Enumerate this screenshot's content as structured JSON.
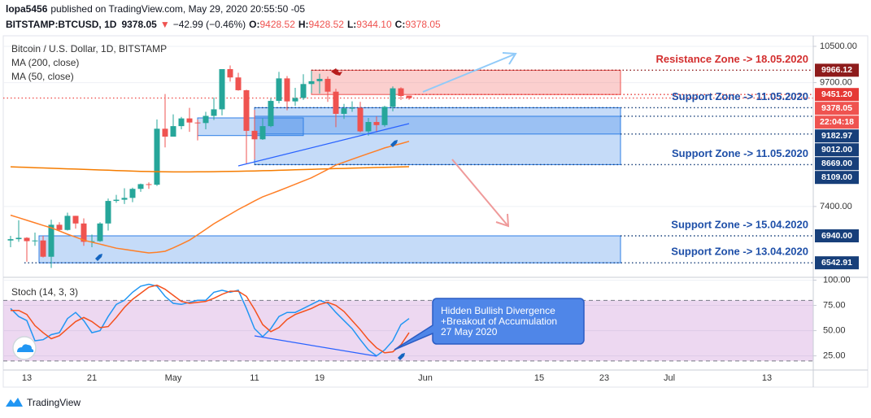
{
  "header": {
    "author": "lopa5456",
    "published": "published on TradingView.com, May 29, 2020 20:55:50 -05",
    "symbol": "BITSTAMP:BTCUSD, 1D",
    "last": "9378.05",
    "arrow": "▼",
    "change": "−42.99 (−0.46%)",
    "ohlc": [
      {
        "key": "O:",
        "value": "9428.52"
      },
      {
        "key": "H:",
        "value": "9428.52"
      },
      {
        "key": "L:",
        "value": "9344.10"
      },
      {
        "key": "C:",
        "value": "9378.05"
      }
    ]
  },
  "footer": {
    "brand": "TradingView"
  },
  "chart_data": [
    {
      "type": "candlestick",
      "title": "Bitcoin / U.S. Dollar, 1D, BITSTAMP",
      "log": true,
      "grid": true,
      "up_color": "#26a69a",
      "down_color": "#ef5350",
      "categories": [
        null,
        null,
        "13",
        null,
        null,
        null,
        null,
        null,
        null,
        null,
        "21",
        null,
        null,
        null,
        null,
        null,
        null,
        null,
        null,
        null,
        "May",
        null,
        null,
        null,
        null,
        null,
        null,
        null,
        null,
        null,
        "11",
        null,
        null,
        null,
        null,
        null,
        null,
        null,
        "19",
        null,
        null,
        null,
        null,
        null,
        null,
        null,
        null,
        null,
        null,
        null,
        null,
        "Jun",
        null,
        null,
        null,
        null,
        null,
        null,
        null,
        null,
        null,
        null,
        null,
        null,
        null,
        "15",
        null,
        null,
        null,
        null,
        null,
        null,
        null,
        "23",
        null,
        null,
        null,
        null,
        null,
        null,
        null,
        "Jul",
        null,
        null,
        null,
        null,
        null,
        null,
        null,
        null,
        null,
        null,
        null,
        "13"
      ],
      "open": [
        6870,
        6890,
        6910,
        6860,
        6870,
        6630,
        7110,
        7030,
        7250,
        7130,
        6850,
        6860,
        7130,
        7490,
        7510,
        7540,
        7690,
        7770,
        7760,
        8770,
        8620,
        8820,
        8970,
        8890,
        8880,
        9020,
        9150,
        9990,
        9810,
        9540,
        8730,
        8570,
        8820,
        9320,
        9790,
        9310,
        9380,
        9670,
        9730,
        9780,
        9510,
        9060,
        9170,
        9180,
        8720,
        8900,
        8840,
        9200,
        9580,
        9428.52,
        null,
        null,
        null,
        null,
        null,
        null,
        null,
        null,
        null,
        null,
        null,
        null,
        null,
        null,
        null,
        null,
        null,
        null,
        null,
        null,
        null,
        null,
        null,
        null,
        null,
        null,
        null,
        null,
        null,
        null,
        null,
        null,
        null,
        null,
        null,
        null,
        null,
        null,
        null,
        null,
        null,
        null,
        null,
        null
      ],
      "high": [
        6940,
        7180,
        6920,
        6990,
        6940,
        7190,
        7150,
        7300,
        7250,
        7210,
        6960,
        7150,
        7530,
        7590,
        7700,
        7710,
        7780,
        7800,
        8950,
        9460,
        9050,
        9000,
        9180,
        8950,
        9100,
        9390,
        9990,
        10070,
        9910,
        9550,
        9140,
        8970,
        9380,
        9930,
        9840,
        9590,
        9880,
        9950,
        9890,
        9830,
        9570,
        9260,
        9310,
        9300,
        8980,
        9010,
        9220,
        9620,
        9600,
        9428.52,
        null,
        null,
        null,
        null,
        null,
        null,
        null,
        null,
        null,
        null,
        null,
        null,
        null,
        null,
        null,
        null,
        null,
        null,
        null,
        null,
        null,
        null,
        null,
        null,
        null,
        null,
        null,
        null,
        null,
        null,
        null,
        null,
        null,
        null,
        null,
        null,
        null,
        null,
        null,
        null,
        null,
        null,
        null,
        null
      ],
      "low": [
        6770,
        6850,
        6560,
        6790,
        6620,
        6470,
        7010,
        7020,
        7050,
        6790,
        6770,
        6850,
        7020,
        7460,
        7440,
        7470,
        7640,
        7690,
        7740,
        8420,
        8620,
        8760,
        8710,
        8550,
        8760,
        8940,
        9030,
        9720,
        9530,
        8120,
        8200,
        8560,
        8800,
        9270,
        9130,
        9220,
        9340,
        9480,
        9470,
        9300,
        8800,
        8960,
        9100,
        8700,
        8640,
        8700,
        8810,
        9110,
        9340,
        9344.1,
        null,
        null,
        null,
        null,
        null,
        null,
        null,
        null,
        null,
        null,
        null,
        null,
        null,
        null,
        null,
        null,
        null,
        null,
        null,
        null,
        null,
        null,
        null,
        null,
        null,
        null,
        null,
        null,
        null,
        null,
        null,
        null,
        null,
        null,
        null,
        null,
        null,
        null,
        null,
        null,
        null,
        null,
        null,
        null
      ],
      "close": [
        6890,
        6910,
        6860,
        6870,
        6630,
        7110,
        7030,
        7250,
        7130,
        6850,
        6860,
        7130,
        7490,
        7510,
        7540,
        7690,
        7770,
        7760,
        8770,
        8620,
        8820,
        8970,
        8890,
        8880,
        9020,
        9150,
        9990,
        9810,
        9540,
        8730,
        8570,
        8820,
        9320,
        9790,
        9310,
        9380,
        9670,
        9730,
        9780,
        9510,
        9060,
        9170,
        9180,
        8720,
        8900,
        8840,
        9200,
        9580,
        9421.04,
        9378.05,
        null,
        null,
        null,
        null,
        null,
        null,
        null,
        null,
        null,
        null,
        null,
        null,
        null,
        null,
        null,
        null,
        null,
        null,
        null,
        null,
        null,
        null,
        null,
        null,
        null,
        null,
        null,
        null,
        null,
        null,
        null,
        null,
        null,
        null,
        null,
        null,
        null,
        null,
        null,
        null,
        null,
        null,
        null,
        null
      ],
      "series": [
        {
          "name": "MA (200, close)",
          "color": "#f57c00",
          "values": [
            8070,
            8065,
            8060,
            8055,
            8050,
            8045,
            8040,
            8035,
            8030,
            8025,
            8020,
            8015,
            8010,
            8005,
            8000,
            7995,
            7990,
            7987,
            7984,
            7982,
            7980,
            7980,
            7981,
            7982,
            7983,
            7985,
            7987,
            7989,
            7991,
            7994,
            7997,
            8001,
            8005,
            8009,
            8013,
            8017,
            8021,
            8026,
            8030,
            8034,
            8038,
            8042,
            8046,
            8050,
            8054,
            8058,
            8062,
            8065,
            8068,
            8071,
            null,
            null,
            null,
            null,
            null,
            null,
            null,
            null,
            null,
            null,
            null,
            null,
            null,
            null,
            null,
            null,
            null,
            null,
            null,
            null,
            null,
            null,
            null,
            null,
            null,
            null,
            null,
            null,
            null,
            null,
            null,
            null,
            null,
            null,
            null,
            null,
            null,
            null,
            null,
            null,
            null,
            null,
            null,
            null
          ]
        },
        {
          "name": "MA (50, close)",
          "color": "#ff7f27",
          "values": [
            7260,
            7220,
            7180,
            7140,
            7100,
            7063,
            7015,
            6965,
            6920,
            6875,
            6845,
            6815,
            6785,
            6755,
            6738,
            6720,
            6703,
            6686,
            6695,
            6710,
            6760,
            6815,
            6875,
            6955,
            7040,
            7126,
            7200,
            7275,
            7351,
            7420,
            7490,
            7556,
            7608,
            7660,
            7712,
            7768,
            7823,
            7879,
            7950,
            8025,
            8100,
            8152,
            8204,
            8256,
            8307,
            8358,
            8410,
            8450,
            8490,
            8532,
            null,
            null,
            null,
            null,
            null,
            null,
            null,
            null,
            null,
            null,
            null,
            null,
            null,
            null,
            null,
            null,
            null,
            null,
            null,
            null,
            null,
            null,
            null,
            null,
            null,
            null,
            null,
            null,
            null,
            null,
            null,
            null,
            null,
            null,
            null,
            null,
            null,
            null,
            null,
            null,
            null,
            null,
            null,
            null
          ]
        }
      ],
      "ylim": [
        6350,
        10726
      ],
      "yticks": [
        {
          "value": 10500,
          "label": "10500.00"
        },
        {
          "value": 9700,
          "label": "9700.00"
        },
        {
          "value": 7400,
          "label": "7400.00"
        }
      ],
      "levels": [
        {
          "value": 9966.12,
          "color": "#8e1c1c",
          "note": "Resistance Zone -> 18.05.2020",
          "note_color": "#d32f2f"
        },
        {
          "value": 9451.2,
          "label": "9451.20",
          "color": "#e53935"
        },
        {
          "value": 9378.05,
          "color": "#ef5350",
          "countdown": "22:04:18"
        },
        {
          "value": 9182.97,
          "color": "#173f7a",
          "note": "Support Zone -> 11.05.2020",
          "note_color": "#1e4fa8"
        },
        {
          "value": 9012,
          "label": "9012.00",
          "color": "#173f7a"
        },
        {
          "value": 8669,
          "label": "8669.00",
          "color": "#173f7a"
        },
        {
          "value": 8109,
          "label": "8109.00",
          "color": "#173f7a",
          "note": "Support Zone -> 11.05.2020",
          "note_color": "#1e4fa8"
        },
        {
          "value": 6940,
          "label": "6940.00",
          "color": "#173f7a",
          "note": "Support Zone -> 15.04.2020",
          "note_color": "#1e4fa8"
        },
        {
          "value": 6542.91,
          "color": "#173f7a",
          "note": "Support Zone -> 13.04.2020",
          "note_color": "#1e4fa8"
        }
      ],
      "zones": [
        {
          "top": 9966.12,
          "bottom": 9451.2,
          "color": "#ef5350"
        },
        {
          "top": 9182.97,
          "bottom": 8109,
          "color": "#2f7fe6"
        },
        {
          "top": 9012,
          "bottom": 8669,
          "color": "#2f7fe6"
        },
        {
          "top": 8980,
          "bottom": 8640,
          "color": "#2f7fe6"
        },
        {
          "top": 6940,
          "bottom": 6542.91,
          "color": "#2f7fe6"
        }
      ]
    },
    {
      "type": "line",
      "title": "Stoch (14, 3, 3)",
      "grid": true,
      "series": [
        {
          "color": "#2196f3",
          "values": [
            72,
            64,
            60,
            40,
            41,
            46,
            48,
            62,
            68,
            60,
            48,
            50,
            64,
            76,
            80,
            88,
            94,
            96,
            94,
            84,
            77,
            76,
            78,
            80,
            80,
            88,
            90,
            88,
            90,
            72,
            52,
            44,
            52,
            64,
            68,
            68,
            72,
            76,
            80,
            77,
            68,
            60,
            52,
            41,
            31,
            25,
            31,
            40,
            56,
            62,
            null,
            null,
            null,
            null,
            null,
            null,
            null,
            null,
            null,
            null,
            null,
            null,
            null,
            null,
            null,
            null,
            null,
            null,
            null,
            null,
            null,
            null,
            null,
            null,
            null,
            null,
            null,
            null,
            null,
            null,
            null,
            null,
            null,
            null,
            null,
            null,
            null,
            null,
            null,
            null,
            null,
            null,
            null,
            null
          ]
        },
        {
          "color": "#f4511e",
          "values": [
            70,
            70,
            66,
            55,
            48,
            42,
            45,
            52,
            59,
            63,
            59,
            53,
            54,
            63,
            73,
            81,
            87,
            93,
            95,
            91,
            85,
            79,
            77,
            78,
            79,
            82,
            86,
            89,
            89,
            84,
            71,
            56,
            49,
            53,
            61,
            66,
            69,
            72,
            76,
            78,
            75,
            69,
            60,
            51,
            41,
            33,
            28,
            29,
            36,
            48,
            null,
            null,
            null,
            null,
            null,
            null,
            null,
            null,
            null,
            null,
            null,
            null,
            null,
            null,
            null,
            null,
            null,
            null,
            null,
            null,
            null,
            null,
            null,
            null,
            null,
            null,
            null,
            null,
            null,
            null,
            null,
            null,
            null,
            null,
            null,
            null,
            null,
            null,
            null,
            null,
            null,
            null,
            null,
            null
          ]
        }
      ],
      "bands": [
        80,
        20
      ],
      "band_color": "#9c27b0",
      "ylim": [
        11,
        102
      ],
      "yticks": [
        {
          "value": 100,
          "label": "100.00"
        },
        {
          "value": 75,
          "label": "75.00"
        },
        {
          "value": 50,
          "label": "50.00"
        },
        {
          "value": 25,
          "label": "25.00"
        }
      ],
      "annotation": [
        "Hidden Bullish Divergence",
        "+Breakout of Accumulation",
        "27 May 2020"
      ]
    }
  ]
}
